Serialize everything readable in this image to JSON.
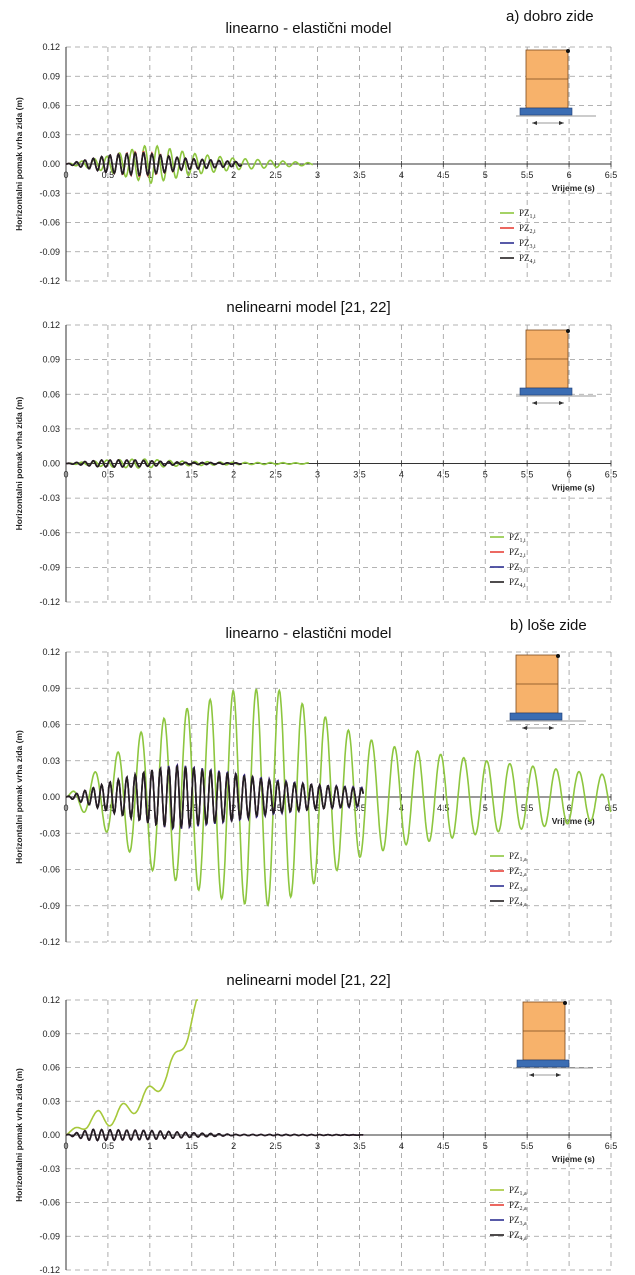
{
  "figure": {
    "section_a": "a) dobro zide",
    "section_b": "b) loše zide"
  },
  "colors": {
    "green": "#8dc63f",
    "red": "#e8433a",
    "blue": "#2e3192",
    "black": "#231f20",
    "wall_fill": "#f7b26b",
    "wall_stroke": "#7a4a1e",
    "base_fill": "#3b6db3"
  },
  "chart_data": [
    {
      "type": "line",
      "title": "linearno - elastični model",
      "xlabel": "Vrijeme (s)",
      "ylabel": "Horizontalni pomak vrha zida (m)",
      "xlim": [
        0,
        6.5
      ],
      "ylim": [
        -0.12,
        0.12
      ],
      "xticks": [
        "0",
        "0.5",
        "1",
        "1.5",
        "2",
        "2.5",
        "3",
        "3.5",
        "4",
        "4.5",
        "5",
        "5.5",
        "6",
        "6.5"
      ],
      "yticks": [
        "0.12",
        "0.09",
        "0.06",
        "0.03",
        "0.00",
        "-0.03",
        "-0.06",
        "-0.09",
        "-0.12"
      ],
      "grid": true,
      "legend_position": "right",
      "series": [
        {
          "name": "PZ",
          "sub": "1,i",
          "color": "#8dc63f",
          "envelope": [
            [
              0,
              0
            ],
            [
              0.5,
              0.008
            ],
            [
              1.0,
              0.02
            ],
            [
              1.5,
              0.011
            ],
            [
              2.0,
              0.006
            ],
            [
              2.6,
              0.003
            ],
            [
              2.95,
              0.001
            ]
          ],
          "end": 2.95,
          "period": 0.15,
          "offset": []
        },
        {
          "name": "PZ",
          "sub": "2,i",
          "color": "#e8433a",
          "envelope": [
            [
              0,
              0
            ],
            [
              0.5,
              0.009
            ],
            [
              0.9,
              0.013
            ],
            [
              1.4,
              0.006
            ],
            [
              2.1,
              0.002
            ]
          ],
          "end": 2.1,
          "period": 0.1,
          "offset": []
        },
        {
          "name": "PZ",
          "sub": "3,i",
          "color": "#2e3192",
          "envelope": [
            [
              0,
              0
            ],
            [
              0.5,
              0.009
            ],
            [
              0.9,
              0.012
            ],
            [
              1.4,
              0.006
            ],
            [
              2.1,
              0.002
            ]
          ],
          "end": 2.1,
          "period": 0.1,
          "offset": []
        },
        {
          "name": "PZ",
          "sub": "4,i",
          "color": "#231f20",
          "envelope": [
            [
              0,
              0
            ],
            [
              0.5,
              0.009
            ],
            [
              0.9,
              0.012
            ],
            [
              1.4,
              0.006
            ],
            [
              2.1,
              0.002
            ]
          ],
          "end": 2.1,
          "period": 0.1,
          "offset": []
        }
      ]
    },
    {
      "type": "line",
      "title": "nelinearni model [21, 22]",
      "xlabel": "Vrijeme (s)",
      "ylabel": "Horizontalni pomak vrha zida (m)",
      "xlim": [
        0,
        6.5
      ],
      "ylim": [
        -0.12,
        0.12
      ],
      "xticks": [
        "0",
        "0.5",
        "1",
        "1.5",
        "2",
        "2.5",
        "3",
        "3.5",
        "4",
        "4.5",
        "5",
        "5.5",
        "6",
        "6.5"
      ],
      "yticks": [
        "0.12",
        "0.09",
        "0.06",
        "0.03",
        "0.00",
        "-0.03",
        "-0.06",
        "-0.09",
        "-0.12"
      ],
      "grid": true,
      "legend_position": "bottom-right",
      "series": [
        {
          "name": "PZ",
          "sub": "1,i",
          "color": "#8dc63f",
          "envelope": [
            [
              0,
              0
            ],
            [
              0.5,
              0.003
            ],
            [
              0.9,
              0.004
            ],
            [
              1.4,
              0.002
            ],
            [
              2.0,
              0.001
            ],
            [
              2.9,
              0.0005
            ]
          ],
          "end": 2.9,
          "period": 0.15,
          "offset": []
        },
        {
          "name": "PZ",
          "sub": "2,i",
          "color": "#e8433a",
          "envelope": [
            [
              0,
              0
            ],
            [
              0.4,
              0.003
            ],
            [
              0.8,
              0.003
            ],
            [
              1.4,
              0.001
            ],
            [
              2.1,
              0.0005
            ]
          ],
          "end": 2.1,
          "period": 0.1,
          "offset": []
        },
        {
          "name": "PZ",
          "sub": "3,i",
          "color": "#2e3192",
          "envelope": [
            [
              0,
              0
            ],
            [
              0.4,
              0.003
            ],
            [
              0.8,
              0.003
            ],
            [
              1.4,
              0.001
            ],
            [
              2.1,
              0.0005
            ]
          ],
          "end": 2.1,
          "period": 0.1,
          "offset": []
        },
        {
          "name": "PZ",
          "sub": "4,i",
          "color": "#231f20",
          "envelope": [
            [
              0,
              0
            ],
            [
              0.4,
              0.003
            ],
            [
              0.8,
              0.003
            ],
            [
              1.4,
              0.001
            ],
            [
              2.1,
              0.0005
            ]
          ],
          "end": 2.1,
          "period": 0.1,
          "offset": []
        }
      ]
    },
    {
      "type": "line",
      "title": "linearno - elastični model",
      "xlabel": "Vrijeme (s)",
      "ylabel": "Horizontalni pomak vrha zida (m)",
      "xlim": [
        0,
        6.5
      ],
      "ylim": [
        -0.12,
        0.12
      ],
      "xticks": [
        "0",
        "0.5",
        "1",
        "1.5",
        "2",
        "2.5",
        "3",
        "3.5",
        "4",
        "4.5",
        "5",
        "5.5",
        "6",
        "6.5"
      ],
      "yticks": [
        "0.12",
        "0.09",
        "0.06",
        "0.03",
        "0.00",
        "-0.03",
        "-0.06",
        "-0.09",
        "-0.12"
      ],
      "grid": true,
      "legend_position": "right",
      "series": [
        {
          "name": "PZ",
          "sub": "1,a",
          "color": "#8dc63f",
          "envelope": [
            [
              0,
              0
            ],
            [
              0.5,
              0.03
            ],
            [
              1.0,
              0.06
            ],
            [
              1.5,
              0.075
            ],
            [
              2.0,
              0.088
            ],
            [
              2.5,
              0.09
            ],
            [
              3.0,
              0.07
            ],
            [
              3.5,
              0.05
            ],
            [
              4.0,
              0.04
            ],
            [
              5.0,
              0.03
            ],
            [
              6.0,
              0.022
            ],
            [
              6.5,
              0.018
            ]
          ],
          "end": 6.5,
          "period": 0.275,
          "offset": []
        },
        {
          "name": "PZ",
          "sub": "2,a",
          "color": "#e8433a",
          "envelope": [
            [
              0,
              0
            ],
            [
              0.5,
              0.012
            ],
            [
              1.0,
              0.022
            ],
            [
              1.3,
              0.027
            ],
            [
              2.0,
              0.02
            ],
            [
              2.5,
              0.014
            ],
            [
              3.0,
              0.01
            ],
            [
              3.55,
              0.008
            ]
          ],
          "end": 3.55,
          "period": 0.1,
          "offset": []
        },
        {
          "name": "PZ",
          "sub": "3,a",
          "color": "#2e3192",
          "envelope": [
            [
              0,
              0
            ],
            [
              0.5,
              0.012
            ],
            [
              1.0,
              0.022
            ],
            [
              1.3,
              0.027
            ],
            [
              2.0,
              0.02
            ],
            [
              2.5,
              0.014
            ],
            [
              3.0,
              0.01
            ],
            [
              3.55,
              0.008
            ]
          ],
          "end": 3.55,
          "period": 0.1,
          "offset": []
        },
        {
          "name": "PZ",
          "sub": "4,a",
          "color": "#231f20",
          "envelope": [
            [
              0,
              0
            ],
            [
              0.5,
              0.012
            ],
            [
              1.0,
              0.022
            ],
            [
              1.3,
              0.026
            ],
            [
              2.0,
              0.019
            ],
            [
              2.5,
              0.013
            ],
            [
              3.0,
              0.01
            ],
            [
              3.55,
              0.007
            ]
          ],
          "end": 3.55,
          "period": 0.1,
          "offset": []
        }
      ]
    },
    {
      "type": "line",
      "title": "nelinearni model [21, 22]",
      "xlabel": "Vrijeme (s)",
      "ylabel": "Horizontalni pomak vrha zida (m)",
      "xlim": [
        0,
        6.5
      ],
      "ylim": [
        -0.12,
        0.12
      ],
      "xticks": [
        "0",
        "0.5",
        "1",
        "1.5",
        "2",
        "2.5",
        "3",
        "3.5",
        "4",
        "4.5",
        "5",
        "5.5",
        "6",
        "6.5"
      ],
      "yticks": [
        "0.12",
        "0.09",
        "0.06",
        "0.03",
        "0.00",
        "-0.03",
        "-0.06",
        "-0.09",
        "-0.12"
      ],
      "grid": true,
      "legend_position": "bottom-right",
      "series": [
        {
          "name": "PZ",
          "sub": "1,a",
          "color": "#a6c83a",
          "envelope": [
            [
              0,
              0
            ],
            [
              0.4,
              0.008
            ],
            [
              1.6,
              0.006
            ]
          ],
          "end": 1.58,
          "period": 0.3,
          "offset": [
            [
              0,
              0
            ],
            [
              0.3,
              0.013
            ],
            [
              0.6,
              0.017
            ],
            [
              0.9,
              0.03
            ],
            [
              1.2,
              0.052
            ],
            [
              1.45,
              0.09
            ],
            [
              1.58,
              0.12
            ]
          ]
        },
        {
          "name": "PZ",
          "sub": "2,a",
          "color": "#e8433a",
          "envelope": [
            [
              0,
              0
            ],
            [
              0.3,
              0.005
            ],
            [
              1.0,
              0.004
            ],
            [
              1.5,
              0.002
            ],
            [
              2.0,
              0.0005
            ],
            [
              3.55,
              0.0002
            ]
          ],
          "end": 3.55,
          "period": 0.1,
          "offset": []
        },
        {
          "name": "PZ",
          "sub": "3,a",
          "color": "#2e3192",
          "envelope": [
            [
              0,
              0
            ],
            [
              0.3,
              0.005
            ],
            [
              1.0,
              0.004
            ],
            [
              1.5,
              0.002
            ],
            [
              2.0,
              0.0005
            ],
            [
              3.55,
              0.0002
            ]
          ],
          "end": 3.55,
          "period": 0.1,
          "offset": []
        },
        {
          "name": "PZ",
          "sub": "4,a",
          "color": "#231f20",
          "envelope": [
            [
              0,
              0
            ],
            [
              0.3,
              0.005
            ],
            [
              1.0,
              0.004
            ],
            [
              1.5,
              0.002
            ],
            [
              2.0,
              0.0005
            ],
            [
              3.55,
              0.0002
            ]
          ],
          "end": 3.55,
          "period": 0.1,
          "offset": []
        }
      ]
    }
  ]
}
